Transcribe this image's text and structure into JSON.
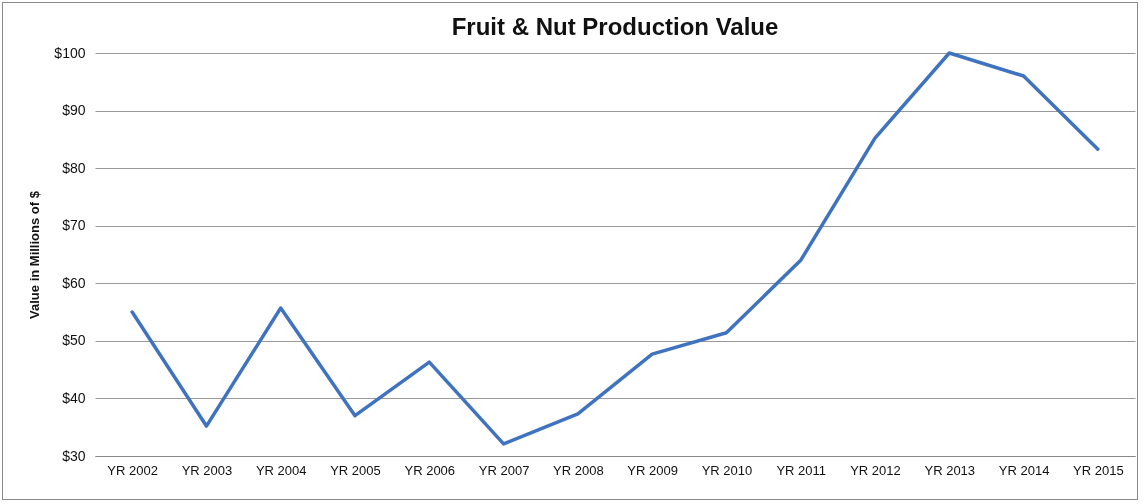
{
  "chart_data": {
    "type": "line",
    "title": "Fruit & Nut Production Value",
    "ylabel": "Value in Millions of $",
    "categories": [
      "YR 2002",
      "YR 2003",
      "YR 2004",
      "YR 2005",
      "YR 2006",
      "YR 2007",
      "YR 2008",
      "YR 2009",
      "YR 2010",
      "YR 2011",
      "YR 2012",
      "YR 2013",
      "YR 2014",
      "YR 2015"
    ],
    "series": [
      {
        "color": "#4073bf",
        "values": [
          55,
          35.2,
          55.7,
          37,
          46.3,
          32.1,
          37.3,
          47.7,
          51.4,
          64,
          85.2,
          100,
          96,
          83.3
        ]
      }
    ],
    "ylim": [
      30,
      100
    ],
    "yticks": [
      {
        "value": 30,
        "label": "$30"
      },
      {
        "value": 40,
        "label": "$40"
      },
      {
        "value": 50,
        "label": "$50"
      },
      {
        "value": 60,
        "label": "$60"
      },
      {
        "value": 70,
        "label": "$70"
      },
      {
        "value": 80,
        "label": "$80"
      },
      {
        "value": 90,
        "label": "$90"
      },
      {
        "value": 100,
        "label": "$100"
      }
    ],
    "grid": "y",
    "marker": "none",
    "line_style": "solid"
  }
}
